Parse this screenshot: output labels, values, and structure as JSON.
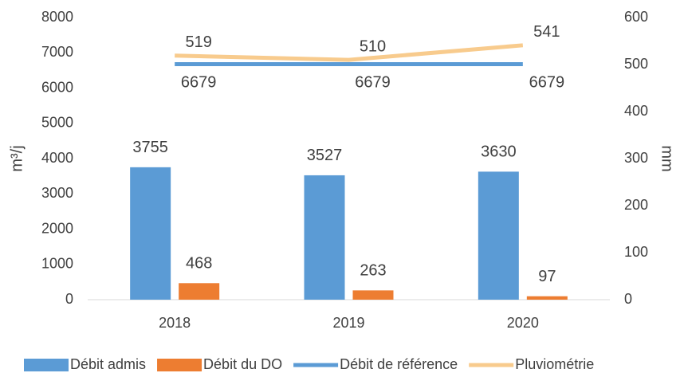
{
  "chart_data": {
    "type": "bar_line",
    "categories": [
      "2018",
      "2019",
      "2020"
    ],
    "ylabel": "m³/j",
    "y2label": "mm",
    "ylim": [
      0,
      8000
    ],
    "yticks": [
      0,
      1000,
      2000,
      3000,
      4000,
      5000,
      6000,
      7000,
      8000
    ],
    "y2lim": [
      0,
      600
    ],
    "y2ticks": [
      0,
      100,
      200,
      300,
      400,
      500,
      600
    ],
    "grid": false,
    "legend": "bottom",
    "series": [
      {
        "name": "Débit admis",
        "kind": "bar",
        "color": "#5b9bd5",
        "values": [
          3755,
          3527,
          3630
        ]
      },
      {
        "name": "Débit du DO",
        "kind": "bar",
        "color": "#ed7d31",
        "values": [
          468,
          263,
          97
        ]
      },
      {
        "name": "Débit de référence",
        "kind": "line",
        "color": "#5b9bd5",
        "values": [
          6679,
          6679,
          6679
        ]
      },
      {
        "name": "Pluviométrie",
        "kind": "line",
        "color": "#f8cb8d",
        "axis": "y2",
        "values": [
          519,
          510,
          541
        ]
      }
    ]
  }
}
